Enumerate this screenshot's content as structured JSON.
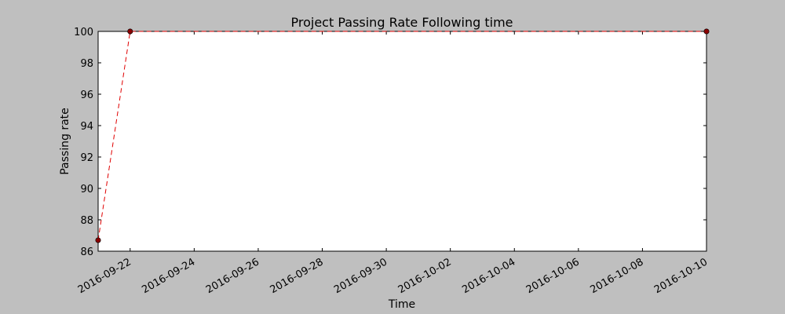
{
  "chart_data": {
    "type": "line",
    "title": "Project Passing Rate Following time",
    "xlabel": "Time",
    "ylabel": "Passing rate",
    "x_tick_labels": [
      "2016-09-22",
      "2016-09-24",
      "2016-09-26",
      "2016-09-28",
      "2016-09-30",
      "2016-10-02",
      "2016-10-04",
      "2016-10-06",
      "2016-10-08",
      "2016-10-10"
    ],
    "xlim": [
      "2016-09-21",
      "2016-10-10"
    ],
    "ylim": [
      86,
      100
    ],
    "y_ticks": [
      86,
      88,
      90,
      92,
      94,
      96,
      98,
      100
    ],
    "grid": false,
    "series": [
      {
        "x": [
          "2016-09-21",
          "2016-09-22",
          "2016-10-10"
        ],
        "y": [
          86.7,
          100,
          100
        ],
        "line_color": "#e00000",
        "line_style": "dashed",
        "marker_color": "#8b0000"
      }
    ]
  },
  "colors": {
    "figure_background": "#bfbfbf",
    "plot_background": "#ffffff"
  }
}
